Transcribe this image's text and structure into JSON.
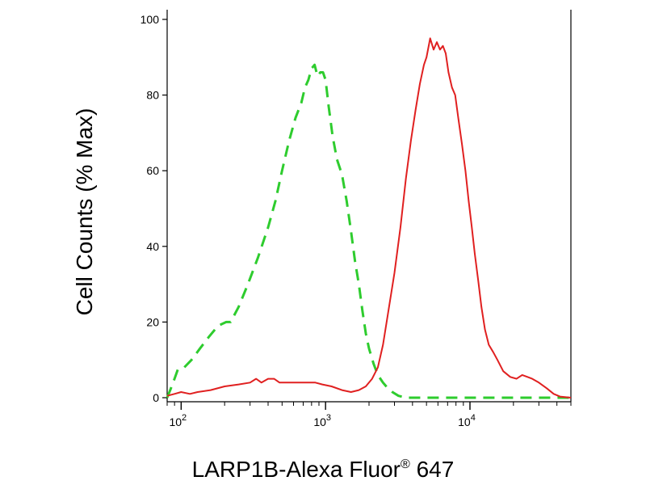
{
  "chart_data": {
    "type": "line",
    "xlabel": "LARP1B-Alexa Fluor",
    "xlabel_mark": "®",
    "xlabel_suffix": " 647",
    "ylabel": "Cell Counts (% Max)",
    "x_scale": "log",
    "xlim": [
      80,
      50000
    ],
    "ylim": [
      0,
      100
    ],
    "y_ticks": [
      0,
      20,
      40,
      60,
      80,
      100
    ],
    "y_tick_labels": [
      "0",
      "20",
      "40",
      "60",
      "80",
      "100"
    ],
    "x_major_ticks": [
      100,
      1000,
      10000
    ],
    "x_tick_labels": [
      {
        "base": "10",
        "exp": "2"
      },
      {
        "base": "10",
        "exp": "3"
      },
      {
        "base": "10",
        "exp": "4"
      }
    ],
    "grid": false,
    "legend": "none",
    "series": [
      {
        "color": "#2ecc2e",
        "style": "dashed",
        "points": [
          [
            80,
            0
          ],
          [
            84,
            2
          ],
          [
            90,
            5
          ],
          [
            95,
            7.5
          ],
          [
            105,
            8
          ],
          [
            118,
            10
          ],
          [
            135,
            13
          ],
          [
            155,
            16
          ],
          [
            180,
            19
          ],
          [
            205,
            20
          ],
          [
            220,
            20
          ],
          [
            250,
            24
          ],
          [
            290,
            30
          ],
          [
            340,
            37
          ],
          [
            400,
            45
          ],
          [
            450,
            52
          ],
          [
            500,
            60
          ],
          [
            560,
            68
          ],
          [
            620,
            74
          ],
          [
            680,
            78
          ],
          [
            720,
            82
          ],
          [
            760,
            84
          ],
          [
            800,
            87
          ],
          [
            840,
            88
          ],
          [
            880,
            85
          ],
          [
            920,
            86
          ],
          [
            960,
            86
          ],
          [
            1000,
            84
          ],
          [
            1050,
            77
          ],
          [
            1120,
            69
          ],
          [
            1200,
            63
          ],
          [
            1300,
            59
          ],
          [
            1400,
            52
          ],
          [
            1500,
            44
          ],
          [
            1600,
            36
          ],
          [
            1700,
            30
          ],
          [
            1800,
            23
          ],
          [
            1900,
            17
          ],
          [
            2000,
            13
          ],
          [
            2150,
            9
          ],
          [
            2300,
            6
          ],
          [
            2500,
            4
          ],
          [
            2700,
            2.5
          ],
          [
            2900,
            1.5
          ],
          [
            3200,
            0.5
          ],
          [
            3600,
            0
          ],
          [
            50000,
            0
          ]
        ]
      },
      {
        "color": "#e02020",
        "style": "solid",
        "points": [
          [
            80,
            0.5
          ],
          [
            90,
            1
          ],
          [
            100,
            1.5
          ],
          [
            115,
            1
          ],
          [
            130,
            1.5
          ],
          [
            160,
            2
          ],
          [
            200,
            3
          ],
          [
            250,
            3.5
          ],
          [
            300,
            4
          ],
          [
            330,
            5
          ],
          [
            360,
            4
          ],
          [
            400,
            5
          ],
          [
            440,
            5
          ],
          [
            480,
            4
          ],
          [
            550,
            4
          ],
          [
            650,
            4
          ],
          [
            750,
            4
          ],
          [
            850,
            4
          ],
          [
            950,
            3.5
          ],
          [
            1100,
            3
          ],
          [
            1300,
            2
          ],
          [
            1500,
            1.5
          ],
          [
            1700,
            2
          ],
          [
            1900,
            3
          ],
          [
            2100,
            5
          ],
          [
            2300,
            8
          ],
          [
            2500,
            14
          ],
          [
            2700,
            22
          ],
          [
            3000,
            33
          ],
          [
            3300,
            45
          ],
          [
            3600,
            58
          ],
          [
            3900,
            68
          ],
          [
            4200,
            76
          ],
          [
            4500,
            83
          ],
          [
            4800,
            88
          ],
          [
            5000,
            90
          ],
          [
            5300,
            95
          ],
          [
            5600,
            92
          ],
          [
            5900,
            94
          ],
          [
            6200,
            92
          ],
          [
            6500,
            93
          ],
          [
            6800,
            91
          ],
          [
            7100,
            86
          ],
          [
            7500,
            82
          ],
          [
            7900,
            80
          ],
          [
            8300,
            74
          ],
          [
            8800,
            67
          ],
          [
            9300,
            60
          ],
          [
            9800,
            52
          ],
          [
            10300,
            45
          ],
          [
            10800,
            38
          ],
          [
            11400,
            31
          ],
          [
            12000,
            24
          ],
          [
            12700,
            18
          ],
          [
            13500,
            14
          ],
          [
            14500,
            12
          ],
          [
            15500,
            10
          ],
          [
            17000,
            7
          ],
          [
            19000,
            5.5
          ],
          [
            21000,
            5
          ],
          [
            23000,
            6
          ],
          [
            25000,
            5.5
          ],
          [
            27000,
            5
          ],
          [
            30000,
            4
          ],
          [
            34000,
            2.5
          ],
          [
            38000,
            1
          ],
          [
            42000,
            0.3
          ],
          [
            50000,
            0
          ]
        ]
      }
    ]
  }
}
